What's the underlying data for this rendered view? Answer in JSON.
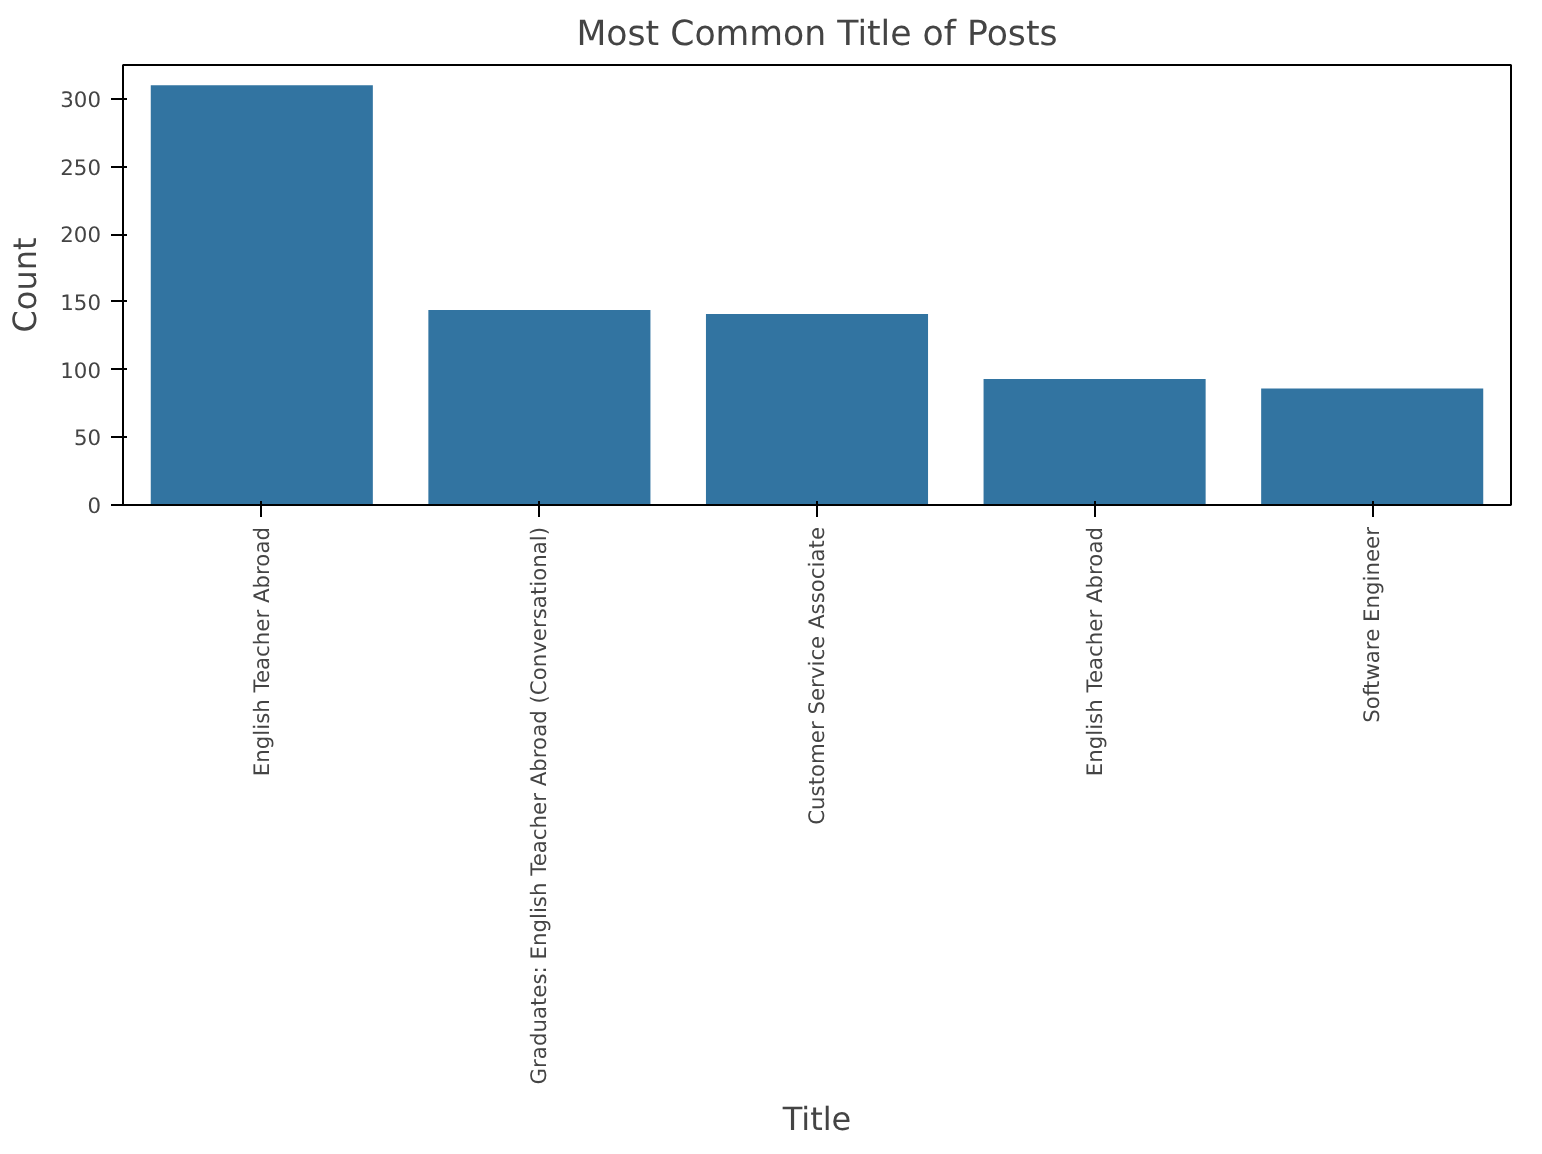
{
  "chart_data": {
    "type": "bar",
    "title": "Most Common Title of Posts",
    "xlabel": "Title",
    "ylabel": "Count",
    "categories": [
      "English Teacher Abroad",
      "Graduates: English Teacher Abroad (Conversational)",
      "Customer Service Associate",
      "English Teacher Abroad",
      "Software Engineer"
    ],
    "values": [
      310,
      144,
      141,
      93,
      86
    ],
    "color": "#3274a1",
    "ylim": [
      0,
      325
    ],
    "yticks": [
      0,
      50,
      100,
      150,
      200,
      250,
      300
    ],
    "grid": false
  }
}
